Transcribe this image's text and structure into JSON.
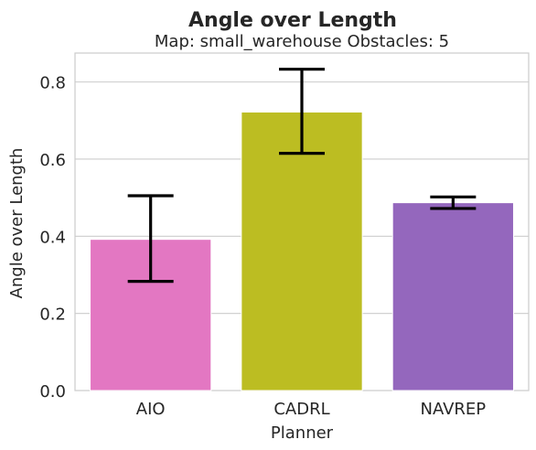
{
  "chart_data": {
    "type": "bar",
    "title": "Angle over Length",
    "subtitle": "Map: small_warehouse Obstacles: 5",
    "xlabel": "Planner",
    "ylabel": "Angle over Length",
    "categories": [
      "AIO",
      "CADRL",
      "NAVREP"
    ],
    "values": [
      0.392,
      0.722,
      0.487
    ],
    "error_low": [
      0.283,
      0.615,
      0.472
    ],
    "error_high": [
      0.505,
      0.833,
      0.502
    ],
    "colors": [
      "#e377c2",
      "#bcbd22",
      "#9467bd"
    ],
    "ylim": [
      0,
      0.875
    ],
    "yticks": [
      0.0,
      0.2,
      0.4,
      0.6,
      0.8
    ],
    "ytick_labels": [
      "0.0",
      "0.2",
      "0.4",
      "0.6",
      "0.8"
    ],
    "grid": "horizontal",
    "legend": "none"
  }
}
